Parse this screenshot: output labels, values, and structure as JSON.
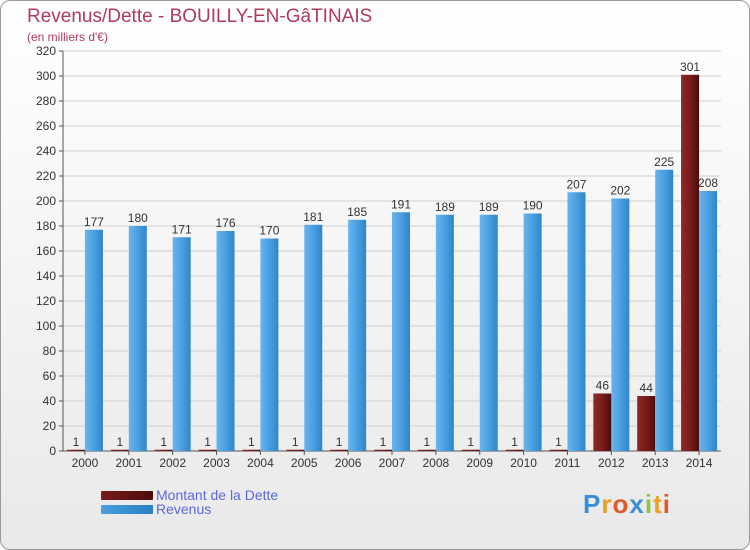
{
  "header": {
    "title": "Revenus/Dette - BOUILLY-EN-GâTINAIS",
    "subtitle": "(en milliers d'€)"
  },
  "colors": {
    "dette": "#7a1a1a",
    "revenus": "#4a9fe0",
    "title": "#b03a5b",
    "legend_text": "#5b6ad8"
  },
  "legend": {
    "dette_label": "Montant de la Dette",
    "revenus_label": "Revenus"
  },
  "logo": {
    "text": "Proxiti",
    "letters": [
      "P",
      "r",
      "o",
      "x",
      "i",
      "t",
      "i"
    ],
    "letter_colors": [
      "#3a8fd6",
      "#e8a020",
      "#e05a28",
      "#3a8fd6",
      "#8cc63e",
      "#e8a020",
      "#e05a28"
    ]
  },
  "chart_data": {
    "type": "bar",
    "categories": [
      "2000",
      "2001",
      "2002",
      "2003",
      "2004",
      "2005",
      "2006",
      "2007",
      "2008",
      "2009",
      "2010",
      "2011",
      "2012",
      "2013",
      "2014"
    ],
    "series": [
      {
        "name": "Montant de la Dette",
        "values": [
          1,
          1,
          1,
          1,
          1,
          1,
          1,
          1,
          1,
          1,
          1,
          1,
          46,
          44,
          301
        ]
      },
      {
        "name": "Revenus",
        "values": [
          177,
          180,
          171,
          176,
          170,
          181,
          185,
          191,
          189,
          189,
          190,
          207,
          202,
          225,
          208
        ]
      }
    ],
    "ylim": [
      0,
      320
    ],
    "yticks": [
      0,
      20,
      40,
      60,
      80,
      100,
      120,
      140,
      160,
      180,
      200,
      220,
      240,
      260,
      280,
      300,
      320
    ],
    "grid": true,
    "legend_position": "bottom-left"
  }
}
